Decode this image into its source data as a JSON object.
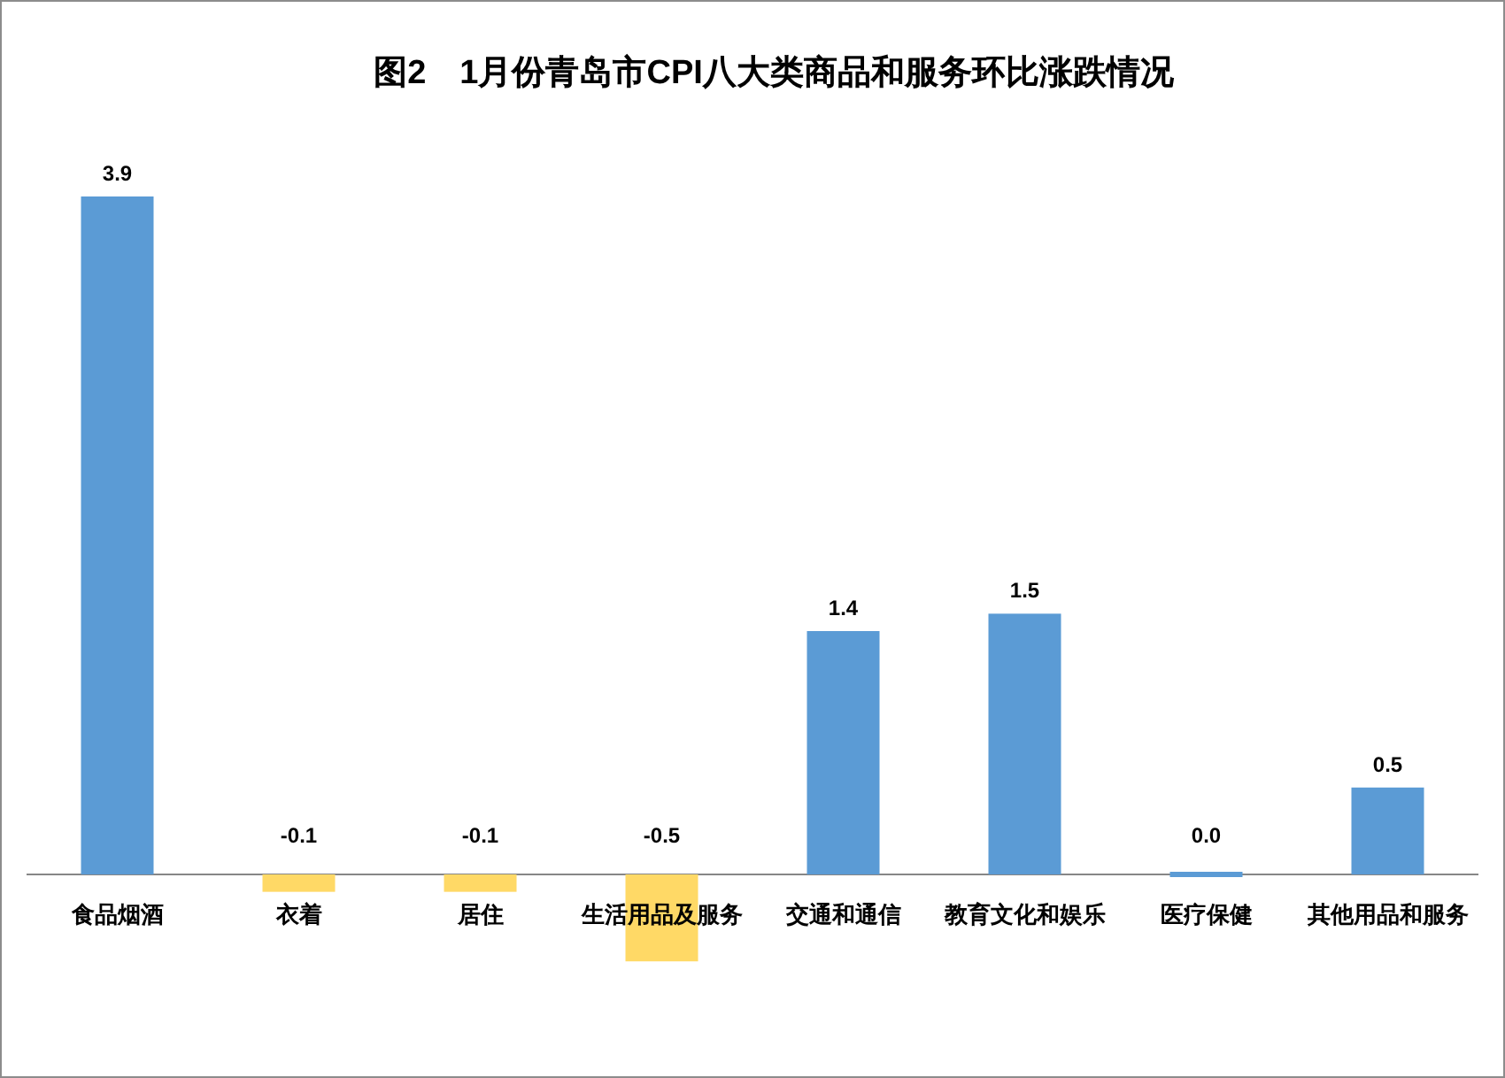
{
  "chart_data": {
    "type": "bar",
    "title": "图2　1月份青岛市CPI八大类商品和服务环比涨跌情况",
    "categories": [
      "食品烟酒",
      "衣着",
      "居住",
      "生活用品及服务",
      "交通和通信",
      "教育文化和娱乐",
      "医疗保健",
      "其他用品和服务"
    ],
    "values": [
      3.9,
      -0.1,
      -0.1,
      -0.5,
      1.4,
      1.5,
      0.0,
      0.5
    ],
    "value_labels": [
      "3.9",
      "-0.1",
      "-0.1",
      "-0.5",
      "1.4",
      "1.5",
      "0.0",
      "0.5"
    ],
    "colors": [
      "#5b9bd5",
      "#ffd966",
      "#ffd966",
      "#ffd966",
      "#5b9bd5",
      "#5b9bd5",
      "#5b9bd5",
      "#5b9bd5"
    ]
  }
}
